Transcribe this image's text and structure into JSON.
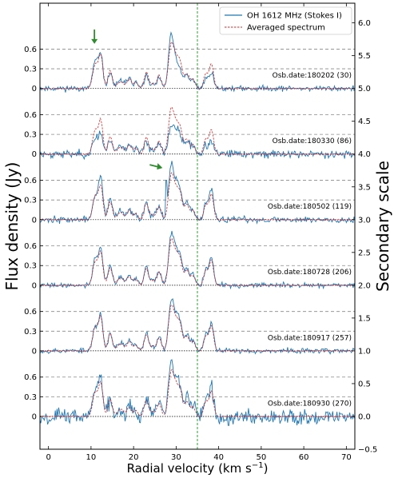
{
  "chart_data": {
    "type": "line",
    "xlabel": "Radial velocity (km s",
    "xlabel_sup": "−1",
    "xlabel_close": ")",
    "ylabel_left": "Flux density (Jy)",
    "ylabel_right": "Secondary scale",
    "xlim": [
      -2,
      72
    ],
    "ylim_right": [
      -0.5,
      6.3
    ],
    "x_ticks": [
      0,
      10,
      20,
      30,
      40,
      50,
      60,
      70
    ],
    "x_tick_labels": [
      "0",
      "10",
      "20",
      "30",
      "40",
      "50",
      "60",
      "70"
    ],
    "right_ticks": [
      -0.5,
      0.0,
      0.5,
      1.0,
      1.5,
      2.0,
      2.5,
      3.0,
      3.5,
      4.0,
      4.5,
      5.0,
      5.5,
      6.0
    ],
    "right_tick_labels": [
      "−0.5",
      "0.0",
      "0.5",
      "1.0",
      "1.5",
      "2.0",
      "2.5",
      "3.0",
      "3.5",
      "4.0",
      "4.5",
      "5.0",
      "5.5",
      "6.0"
    ],
    "left_tick_values": [
      0,
      0.3,
      0.6
    ],
    "left_tick_labels": [
      "0",
      "0.3",
      "0.6"
    ],
    "vline_x": 35,
    "vline_color": "#2ca02c",
    "grid": "dashed horizontal at 0.3 and 0.6 of each panel",
    "legend_placement": "top-right",
    "series": [
      {
        "name": "OH 1612 MHz (Stokes I)",
        "color": "#1f77b4",
        "style": "solid"
      },
      {
        "name": "Averaged spectrum",
        "color": "#d62728",
        "style": "dashed"
      }
    ],
    "line_profile": {
      "peaks": [
        {
          "x": 11.0,
          "amp": 0.4,
          "w": 0.6
        },
        {
          "x": 12.3,
          "amp": 0.55,
          "w": 0.5
        },
        {
          "x": 14.5,
          "amp": 0.3,
          "w": 0.5
        },
        {
          "x": 17.0,
          "amp": 0.12,
          "w": 0.8
        },
        {
          "x": 19.0,
          "amp": 0.15,
          "w": 0.5
        },
        {
          "x": 20.5,
          "amp": 0.1,
          "w": 0.5
        },
        {
          "x": 23.0,
          "amp": 0.28,
          "w": 0.5
        },
        {
          "x": 24.5,
          "amp": 0.08,
          "w": 0.5
        },
        {
          "x": 26.0,
          "amp": 0.22,
          "w": 0.5
        },
        {
          "x": 28.8,
          "amp": 0.72,
          "w": 0.6
        },
        {
          "x": 30.0,
          "amp": 0.45,
          "w": 0.6
        },
        {
          "x": 31.0,
          "amp": 0.35,
          "w": 0.5
        },
        {
          "x": 32.5,
          "amp": 0.25,
          "w": 0.6
        },
        {
          "x": 34.0,
          "amp": 0.15,
          "w": 0.5
        },
        {
          "x": 37.0,
          "amp": 0.25,
          "w": 0.5
        },
        {
          "x": 38.3,
          "amp": 0.42,
          "w": 0.5
        }
      ]
    },
    "panels": [
      {
        "label": "Osb.date:180202 (30)",
        "offset": 5.0,
        "noise": 0.02,
        "seed": 11,
        "scale": [
          1.05,
          0.9,
          0.8,
          1.0,
          1.2,
          0.9,
          0.7,
          0.6,
          0.7,
          1.1,
          0.7,
          0.6,
          0.8,
          0.8,
          0.6,
          0.6
        ],
        "arrow_x": 10.8,
        "arrow_dir": "down"
      },
      {
        "label": "Osb.date:180330 (86)",
        "offset": 4.0,
        "noise": 0.03,
        "seed": 23,
        "scale": [
          0.6,
          0.55,
          0.8,
          1.1,
          1.0,
          1.0,
          0.8,
          0.8,
          0.7,
          0.55,
          0.7,
          0.6,
          0.8,
          0.9,
          0.5,
          0.45
        ]
      },
      {
        "label": "Osb.date:180502 (119)",
        "offset": 3.0,
        "noise": 0.025,
        "seed": 37,
        "scale": [
          0.9,
          1.15,
          1.1,
          1.0,
          0.9,
          0.9,
          1.0,
          1.0,
          1.0,
          1.05,
          1.0,
          1.0,
          1.0,
          1.0,
          1.0,
          1.1
        ],
        "spike": {
          "x": 27.7,
          "amp": 0.6
        },
        "arrow_x": 26.8,
        "arrow_dir": "right"
      },
      {
        "label": "Osb.date:180728 (206)",
        "offset": 2.0,
        "noise": 0.018,
        "seed": 41,
        "scale": [
          1.0,
          1.0,
          1.0,
          1.0,
          1.0,
          1.0,
          1.0,
          1.0,
          1.0,
          1.0,
          1.0,
          1.0,
          1.0,
          1.0,
          1.0,
          1.0
        ]
      },
      {
        "label": "Osb.date:180917 (257)",
        "offset": 1.0,
        "noise": 0.02,
        "seed": 53,
        "scale": [
          0.9,
          0.95,
          0.9,
          1.0,
          1.0,
          1.0,
          1.0,
          1.0,
          1.0,
          1.0,
          1.0,
          1.0,
          1.0,
          1.0,
          1.0,
          1.0
        ]
      },
      {
        "label": "Osb.date:180930 (270)",
        "offset": 0.0,
        "noise": 0.06,
        "seed": 67,
        "scale": [
          1.0,
          1.1,
          0.9,
          1.0,
          1.0,
          1.0,
          1.0,
          1.0,
          1.0,
          1.1,
          1.0,
          1.0,
          1.0,
          1.0,
          1.0,
          1.0
        ]
      }
    ]
  }
}
